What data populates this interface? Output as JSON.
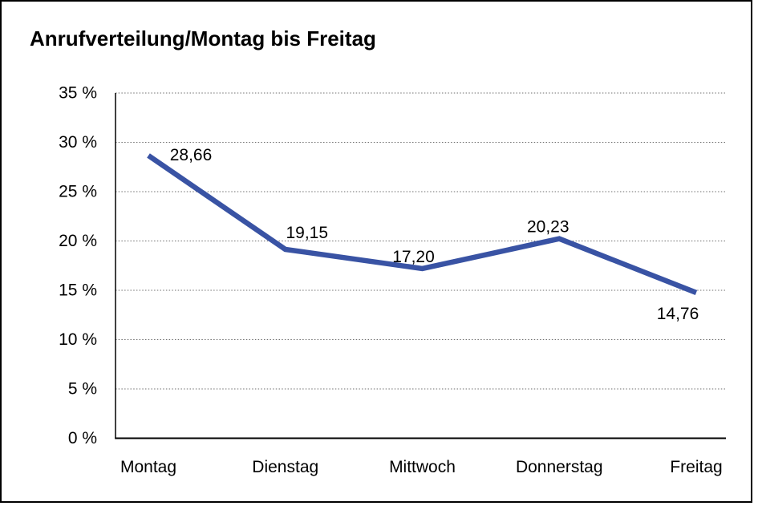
{
  "page": {
    "background": "#FFFFFF",
    "frame_border_color": "#000000"
  },
  "chart_data": {
    "type": "line",
    "title": "Anrufverteilung/Montag bis Freitag",
    "categories": [
      "Montag",
      "Dienstag",
      "Mittwoch",
      "Donnerstag",
      "Freitag"
    ],
    "series": [
      {
        "name": "Anrufverteilung",
        "values": [
          28.66,
          19.15,
          17.2,
          20.23,
          14.76
        ]
      }
    ],
    "point_labels": [
      "28,66",
      "19,15",
      "17,20",
      "20,23",
      "14,76"
    ],
    "y_ticks": [
      {
        "value": 0,
        "label": "0 %"
      },
      {
        "value": 5,
        "label": "5 %"
      },
      {
        "value": 10,
        "label": "10 %"
      },
      {
        "value": 15,
        "label": "15 %"
      },
      {
        "value": 20,
        "label": "20 %"
      },
      {
        "value": 25,
        "label": "25 %"
      },
      {
        "value": 30,
        "label": "30 %"
      },
      {
        "value": 35,
        "label": "35 %"
      }
    ],
    "ylim": [
      0,
      35
    ],
    "y_step": 5,
    "xlabel": "",
    "ylabel": "",
    "grid": "horizontal-dotted",
    "legend": "none",
    "colors": {
      "line": "#3953A4",
      "axis": "#000000",
      "grid": "#6E6E6E",
      "text": "#000000",
      "background": "#FFFFFF",
      "border": "#000000"
    }
  }
}
